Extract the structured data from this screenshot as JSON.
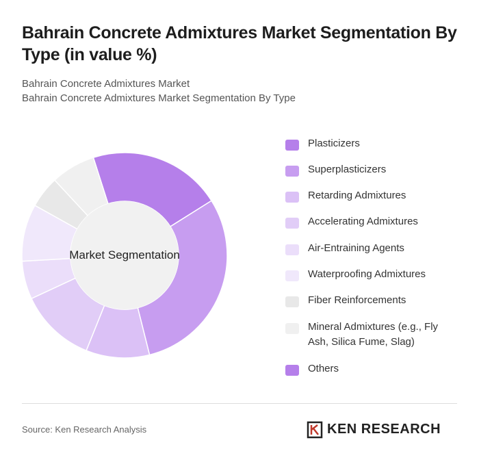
{
  "header": {
    "title": "Bahrain Concrete Admixtures Market Segmentation By Type (in value %)",
    "subtitle_line1": "Bahrain Concrete Admixtures Market",
    "subtitle_line2": "Bahrain Concrete Admixtures Market Segmentation By Type"
  },
  "chart_data": {
    "type": "pie",
    "center_label": "Market Segmentation",
    "categories": [
      "Plasticizers",
      "Superplasticizers",
      "Retarding Admixtures",
      "Accelerating Admixtures",
      "Air-Entraining Agents",
      "Waterproofing Admixtures",
      "Fiber Reinforcements",
      "Mineral Admixtures (e.g., Fly Ash, Silica Fume, Slag)",
      "Others"
    ],
    "values": [
      21,
      30,
      10,
      12,
      6,
      9,
      5,
      7,
      0
    ],
    "colors": [
      "#b57fea",
      "#c79df0",
      "#dbc1f6",
      "#e1cdf7",
      "#ebdefa",
      "#f0e8fb",
      "#e8e8e8",
      "#f0f0f0",
      "#b57fea"
    ],
    "legend_position": "right"
  },
  "footer": {
    "source": "Source: Ken Research Analysis",
    "brand": "KEN RESEARCH",
    "brand_icon": "ken-research-logo-icon"
  }
}
